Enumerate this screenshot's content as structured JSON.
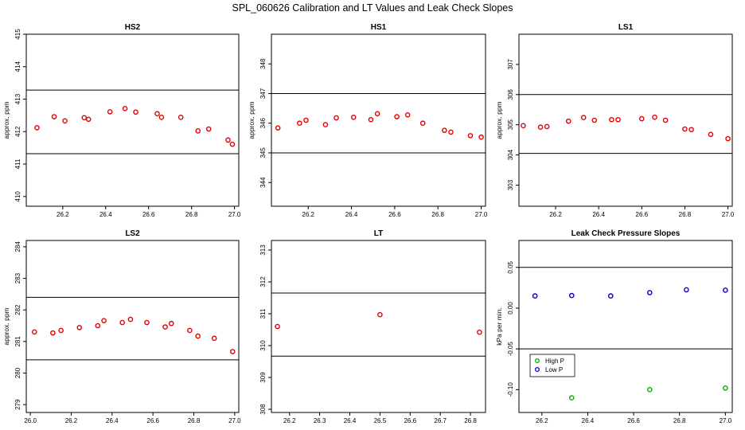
{
  "title": "SPL_060626  Calibration and LT Values and Leak Check Slopes",
  "colors": {
    "red": "#e00000",
    "blue": "#0000cc",
    "green": "#00b000"
  },
  "chart_data": [
    {
      "type": "scatter",
      "title": "HS2",
      "ylabel": "approx. ppm",
      "xlim": [
        26.03,
        27.02
      ],
      "ylim": [
        409.7,
        415.0
      ],
      "xticks": [
        "26.2",
        "26.4",
        "26.6",
        "26.8",
        "27.0"
      ],
      "yticks": [
        "410",
        "411",
        "412",
        "413",
        "414",
        "415"
      ],
      "hlines": [
        411.32,
        413.28
      ],
      "series": [
        {
          "name": "HS2",
          "color": "#e00000",
          "x": [
            26.08,
            26.16,
            26.21,
            26.3,
            26.32,
            26.42,
            26.49,
            26.54,
            26.64,
            26.66,
            26.75,
            26.83,
            26.88,
            26.97,
            26.99
          ],
          "y": [
            412.12,
            412.46,
            412.33,
            412.43,
            412.38,
            412.61,
            412.71,
            412.6,
            412.55,
            412.44,
            412.44,
            412.02,
            412.08,
            411.74,
            411.61
          ]
        }
      ]
    },
    {
      "type": "scatter",
      "title": "HS1",
      "ylabel": "approx. ppm",
      "xlim": [
        26.03,
        27.02
      ],
      "ylim": [
        343.2,
        349.0
      ],
      "xticks": [
        "26.2",
        "26.4",
        "26.6",
        "26.8",
        "27.0"
      ],
      "yticks": [
        "344",
        "345",
        "346",
        "347",
        "348"
      ],
      "hlines": [
        345.0,
        347.0
      ],
      "series": [
        {
          "name": "HS1",
          "color": "#e00000",
          "x": [
            26.06,
            26.16,
            26.19,
            26.28,
            26.33,
            26.41,
            26.49,
            26.52,
            26.61,
            26.66,
            26.73,
            26.83,
            26.86,
            26.95,
            27.0
          ],
          "y": [
            345.84,
            346.0,
            346.1,
            345.95,
            346.18,
            346.2,
            346.12,
            346.32,
            346.22,
            346.28,
            346.0,
            345.76,
            345.7,
            345.58,
            345.53
          ]
        }
      ]
    },
    {
      "type": "scatter",
      "title": "LS1",
      "ylabel": "approx. ppm",
      "xlim": [
        26.03,
        27.02
      ],
      "ylim": [
        302.3,
        308.0
      ],
      "xticks": [
        "26.2",
        "26.4",
        "26.6",
        "26.8",
        "27.0"
      ],
      "yticks": [
        "303",
        "304",
        "305",
        "306",
        "307"
      ],
      "hlines": [
        304.05,
        306.0
      ],
      "series": [
        {
          "name": "LS1",
          "color": "#e00000",
          "x": [
            26.05,
            26.13,
            26.16,
            26.26,
            26.33,
            26.38,
            26.46,
            26.49,
            26.6,
            26.66,
            26.71,
            26.8,
            26.83,
            26.92,
            27.0
          ],
          "y": [
            304.97,
            304.92,
            304.94,
            305.12,
            305.24,
            305.15,
            305.17,
            305.17,
            305.2,
            305.25,
            305.15,
            304.86,
            304.84,
            304.68,
            304.54
          ]
        }
      ]
    },
    {
      "type": "scatter",
      "title": "LS2",
      "ylabel": "approx. ppm",
      "xlim": [
        25.98,
        27.02
      ],
      "ylim": [
        278.75,
        284.2
      ],
      "xticks": [
        "26.0",
        "26.2",
        "26.4",
        "26.6",
        "26.8",
        "27.0"
      ],
      "yticks": [
        "279",
        "280",
        "281",
        "282",
        "283",
        "284"
      ],
      "hlines": [
        280.42,
        282.4
      ],
      "series": [
        {
          "name": "LS2",
          "color": "#e00000",
          "x": [
            26.02,
            26.11,
            26.15,
            26.24,
            26.33,
            26.36,
            26.45,
            26.49,
            26.57,
            26.66,
            26.69,
            26.78,
            26.82,
            26.9,
            26.99
          ],
          "y": [
            281.3,
            281.27,
            281.35,
            281.44,
            281.5,
            281.66,
            281.6,
            281.7,
            281.6,
            281.46,
            281.57,
            281.35,
            281.17,
            281.1,
            280.68
          ]
        }
      ]
    },
    {
      "type": "scatter",
      "title": "LT",
      "ylabel": "",
      "xlim": [
        26.14,
        26.85
      ],
      "ylim": [
        307.9,
        313.3
      ],
      "xticks": [
        "26.2",
        "26.3",
        "26.4",
        "26.5",
        "26.6",
        "26.7",
        "26.8"
      ],
      "yticks": [
        "308",
        "309",
        "310",
        "311",
        "312",
        "313"
      ],
      "hlines": [
        309.67,
        311.65
      ],
      "series": [
        {
          "name": "LT",
          "color": "#e00000",
          "x": [
            26.16,
            26.5,
            26.83
          ],
          "y": [
            310.6,
            310.97,
            310.42
          ]
        }
      ]
    },
    {
      "type": "scatter",
      "title": "Leak Check Pressure Slopes",
      "ylabel": "kPa per min.",
      "xlim": [
        26.1,
        27.03
      ],
      "ylim": [
        -0.128,
        0.083
      ],
      "xticks": [
        "26.2",
        "26.4",
        "26.6",
        "26.8",
        "27.0"
      ],
      "yticks": [
        "-0.10",
        "-0.05",
        "0.00",
        "0.05"
      ],
      "hlines": [
        -0.05,
        0.05
      ],
      "legend": {
        "position": "bottom-left",
        "entries": [
          "High P",
          "Low P"
        ]
      },
      "series": [
        {
          "name": "High P",
          "color": "#00b000",
          "x": [
            26.33,
            26.67,
            27.0
          ],
          "y": [
            -0.11,
            -0.1,
            -0.098
          ]
        },
        {
          "name": "Low P",
          "color": "#0000cc",
          "x": [
            26.17,
            26.33,
            26.5,
            26.67,
            26.83,
            27.0
          ],
          "y": [
            0.015,
            0.0155,
            0.015,
            0.019,
            0.0225,
            0.022
          ]
        }
      ]
    }
  ]
}
